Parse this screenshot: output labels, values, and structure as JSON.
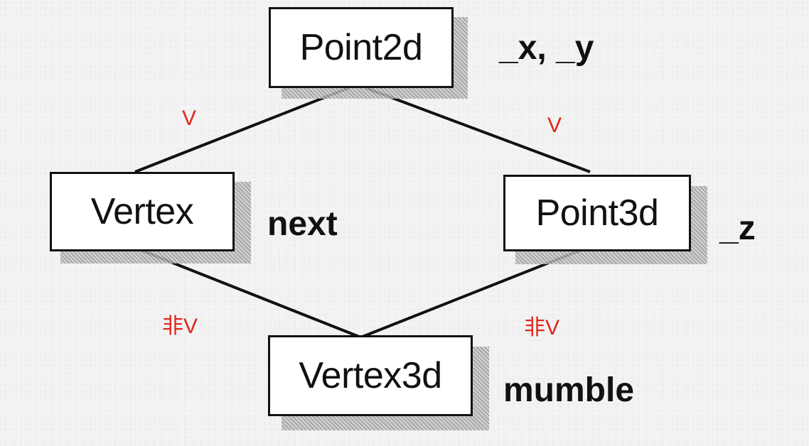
{
  "nodes": {
    "point2d": "Point2d",
    "vertex": "Vertex",
    "point3d": "Point3d",
    "vertex3d": "Vertex3d"
  },
  "fields": {
    "point2d": "_x, _y",
    "vertex": "next",
    "point3d": "_z",
    "vertex3d": "mumble"
  },
  "edge_labels": {
    "point2d_vertex": "V",
    "point2d_point3d": "V",
    "vertex_vertex3d": "非V",
    "point3d_vertex3d": "非V"
  },
  "colors": {
    "line": "#111111",
    "annotation": "#e0261b"
  }
}
